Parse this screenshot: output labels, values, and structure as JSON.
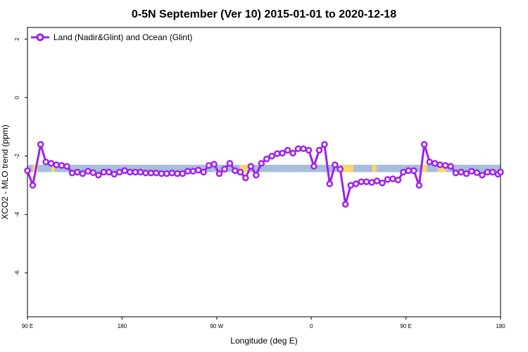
{
  "chart_data": {
    "type": "line",
    "title": "0-5N September (Ver 10)   2015-01-01 to 2020-12-18",
    "xlabel": "Longitude (deg E)",
    "ylabel": "XCO2 - MLO trend (ppm)",
    "x_ticks": [
      {
        "value": 90,
        "label": "90 E"
      },
      {
        "value": 180,
        "label": "180"
      },
      {
        "value": 270,
        "label": "90 W"
      },
      {
        "value": 360,
        "label": "0"
      },
      {
        "value": 450,
        "label": "90 E"
      },
      {
        "value": 540,
        "label": "180"
      }
    ],
    "y_ticks": [
      {
        "value": 2,
        "label": "2"
      },
      {
        "value": 0,
        "label": "0"
      },
      {
        "value": -2,
        "label": "-2"
      },
      {
        "value": -4,
        "label": "-4"
      },
      {
        "value": -6,
        "label": "-6"
      }
    ],
    "xlim": [
      90,
      540
    ],
    "ylim": [
      -7.5,
      2.4
    ],
    "legend_position": "top-left",
    "grid": false,
    "background_band": {
      "y_range": [
        -2.55,
        -2.3
      ],
      "color": "#a6bddb",
      "accent": "#fdd66b"
    },
    "series": [
      {
        "name": "Land (Nadir&Glint) and Ocean (Glint)",
        "color": "#a020f0",
        "x": [
          90,
          95,
          102.5,
          107.5,
          112.5,
          117.5,
          122.5,
          127.5,
          132.5,
          137.5,
          142.5,
          147.5,
          152.5,
          157.5,
          162.5,
          167.5,
          172.5,
          177.5,
          182.5,
          187.5,
          192.5,
          197.5,
          202.5,
          207.5,
          212.5,
          217.5,
          222.5,
          227.5,
          232.5,
          237.5,
          242.5,
          247.5,
          252.5,
          257.5,
          262.5,
          267.5,
          272.5,
          277.5,
          282.5,
          287.5,
          292.5,
          297.5,
          302.5,
          307.5,
          312.5,
          317.5,
          322.5,
          327.5,
          332.5,
          337.5,
          342.5,
          347.5,
          352.5,
          357.5,
          362.5,
          367.5,
          372.5,
          377.5,
          382.5,
          387.5,
          392.5,
          397.5,
          402.5,
          407.5,
          412.5,
          417.5,
          422.5,
          427.5,
          432.5,
          437.5,
          442.5,
          447.5,
          452.5,
          457.5,
          462.5,
          467.5,
          472.5,
          477.5,
          482.5,
          487.5,
          492.5,
          497.5,
          502.5,
          507.5,
          512.5,
          517.5,
          522.5,
          527.5,
          532.5,
          537.5,
          540
        ],
        "values": [
          -2.5,
          -3.0,
          -1.6,
          -2.2,
          -2.25,
          -2.3,
          -2.32,
          -2.35,
          -2.58,
          -2.55,
          -2.6,
          -2.52,
          -2.57,
          -2.65,
          -2.55,
          -2.55,
          -2.62,
          -2.55,
          -2.5,
          -2.55,
          -2.55,
          -2.55,
          -2.58,
          -2.58,
          -2.58,
          -2.6,
          -2.6,
          -2.58,
          -2.6,
          -2.6,
          -2.52,
          -2.52,
          -2.48,
          -2.55,
          -2.32,
          -2.28,
          -2.6,
          -2.45,
          -2.25,
          -2.5,
          -2.55,
          -2.75,
          -2.35,
          -2.65,
          -2.25,
          -2.1,
          -2.0,
          -1.92,
          -1.9,
          -1.8,
          -1.9,
          -1.75,
          -1.75,
          -1.8,
          -2.35,
          -1.8,
          -1.6,
          -2.95,
          -2.3,
          -2.45,
          -3.65,
          -3.0,
          -2.95,
          -2.88,
          -2.88,
          -2.9,
          -2.85,
          -2.92,
          -2.8,
          -2.78,
          -2.82,
          -2.55,
          -2.5,
          -2.5,
          -3.0,
          -1.6,
          -2.2,
          -2.25,
          -2.3,
          -2.32,
          -2.35,
          -2.58,
          -2.55,
          -2.6,
          -2.52,
          -2.57,
          -2.65,
          -2.55,
          -2.55,
          -2.62,
          -2.55
        ]
      }
    ]
  }
}
